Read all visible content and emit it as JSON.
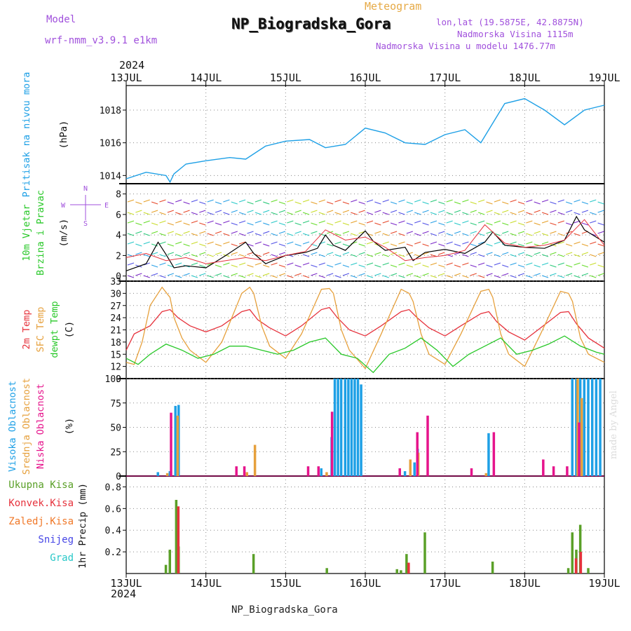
{
  "header": {
    "title": "NP_Biogradska_Gora",
    "subtitle": "Meteogram",
    "model_label": "Model",
    "model_name": "wrf-nmm_v3.9.1 e1km",
    "lonlat": "lon,lat (19.5875E, 42.8875N)",
    "elevation": "Nadmorska Visina 1115m",
    "model_elevation": "Nadmorska Visina u modelu 1476.77m",
    "year_top": "2024",
    "year_bottom": "2024",
    "footer": "NP_Biogradska_Gora",
    "credit": "made by Angel"
  },
  "colors": {
    "pressure": "#1ea0e6",
    "temp2m": "#e6323c",
    "sfc": "#e6a03c",
    "dewpt": "#28c828",
    "high_cloud": "#1ea0e6",
    "mid_cloud": "#e6a03c",
    "low_cloud": "#e6148c",
    "total_precip": "#5aa028",
    "conv_precip": "#e6323c",
    "frozen_precip": "#f07828",
    "snow": "#4646e6",
    "hail": "#28c8c8",
    "label_purple": "#a050dc",
    "label_gold": "#e6aa46"
  },
  "chart_data": [
    {
      "type": "line",
      "panel": "pressure",
      "xlabels": [
        "13JUL",
        "14JUL",
        "15JUL",
        "16JUL",
        "17JUL",
        "18JUL",
        "19JUL"
      ],
      "x_unit": "days from 13JUL 00UTC",
      "ylabel_left": "Pritisak na nivou mora",
      "ylabel_unit": "(hPa)",
      "yticks": [
        1014,
        1016,
        1018
      ],
      "ylim": [
        1013.5,
        1019.5
      ],
      "series": [
        {
          "name": "Pritisak na nivou mora",
          "color_key": "pressure",
          "x": [
            0,
            0.25,
            0.5,
            0.55,
            0.6,
            0.75,
            1,
            1.3,
            1.5,
            1.75,
            2,
            2.3,
            2.5,
            2.75,
            3,
            3.25,
            3.5,
            3.75,
            4,
            4.25,
            4.45,
            4.75,
            5,
            5.25,
            5.5,
            5.75,
            6
          ],
          "y": [
            1013.8,
            1014.2,
            1014.0,
            1013.6,
            1014.1,
            1014.7,
            1014.9,
            1015.1,
            1015.0,
            1015.8,
            1016.1,
            1016.2,
            1015.7,
            1015.9,
            1016.9,
            1016.6,
            1016.0,
            1015.9,
            1016.5,
            1016.8,
            1016.0,
            1018.4,
            1018.7,
            1018.0,
            1017.1,
            1018.0,
            1018.3
          ]
        }
      ]
    },
    {
      "type": "line",
      "panel": "wind",
      "ylabel_left1": "10m Vjetar",
      "ylabel_left2": "Brzina i Pravac",
      "ylabel_unit": "(m/s)",
      "compass": [
        "N",
        "E",
        "S",
        "W"
      ],
      "yticks": [
        0,
        2,
        4,
        6,
        8
      ],
      "ylim": [
        -0.5,
        9
      ],
      "series": [
        {
          "name": "speed",
          "color": "#000000",
          "x": [
            0,
            0.25,
            0.4,
            0.5,
            0.6,
            0.75,
            1,
            1.25,
            1.5,
            1.6,
            1.75,
            2,
            2.25,
            2.4,
            2.5,
            2.6,
            2.75,
            3,
            3.1,
            3.25,
            3.5,
            3.6,
            3.75,
            4,
            4.25,
            4.5,
            4.6,
            4.75,
            5,
            5.25,
            5.5,
            5.65,
            5.75,
            6
          ],
          "y": [
            0.5,
            1.2,
            3.3,
            2.1,
            0.8,
            1.0,
            0.8,
            2.0,
            3.3,
            2.2,
            1.2,
            2.0,
            2.3,
            2.7,
            4.0,
            3.0,
            2.5,
            4.4,
            3.4,
            2.5,
            2.8,
            1.5,
            2.3,
            2.6,
            2.2,
            3.3,
            4.3,
            3.0,
            2.8,
            2.7,
            3.5,
            5.8,
            4.5,
            3.3
          ]
        },
        {
          "name": "gust",
          "color": "#e6323c",
          "x": [
            0,
            0.25,
            0.5,
            0.75,
            1,
            1.25,
            1.5,
            1.75,
            2,
            2.25,
            2.5,
            2.75,
            3,
            3.25,
            3.5,
            3.75,
            4,
            4.25,
            4.5,
            4.75,
            5,
            5.25,
            5.5,
            5.75,
            6
          ],
          "y": [
            1.8,
            2.2,
            1.5,
            1.8,
            1.2,
            1.5,
            1.8,
            1.5,
            2.0,
            2.4,
            4.5,
            3.5,
            3.8,
            2.8,
            1.5,
            1.8,
            2.0,
            2.5,
            5.0,
            3.2,
            2.8,
            3.0,
            3.5,
            5.5,
            3.0
          ]
        }
      ]
    },
    {
      "type": "line",
      "panel": "temperature",
      "ylabel_left1": "2m Temp",
      "ylabel_left2": "SFC Temp",
      "ylabel_left3": "dewpt Temp",
      "ylabel_unit": "(C)",
      "yticks": [
        9,
        12,
        15,
        18,
        21,
        24,
        27,
        30,
        33
      ],
      "ylim": [
        9,
        33
      ],
      "series": [
        {
          "name": "2m Temp",
          "color_key": "temp2m",
          "x": [
            0,
            0.1,
            0.3,
            0.45,
            0.55,
            0.65,
            0.8,
            1,
            1.2,
            1.45,
            1.55,
            1.65,
            1.8,
            2,
            2.2,
            2.45,
            2.55,
            2.65,
            2.8,
            3,
            3.2,
            3.45,
            3.55,
            3.65,
            3.8,
            4,
            4.2,
            4.45,
            4.55,
            4.65,
            4.8,
            5,
            5.2,
            5.45,
            5.55,
            5.65,
            5.8,
            6
          ],
          "y": [
            16,
            20,
            22,
            25.5,
            26,
            24,
            22,
            20.5,
            22,
            25.5,
            26,
            23.5,
            21.5,
            19.5,
            22,
            26,
            26.5,
            24,
            21,
            19.5,
            22,
            25.5,
            26,
            24,
            21.5,
            19.5,
            22,
            25,
            25.5,
            23,
            20.5,
            18.5,
            21.5,
            25.3,
            25.5,
            22.5,
            19,
            16.5
          ]
        },
        {
          "name": "SFC Temp",
          "color_key": "sfc",
          "x": [
            0,
            0.1,
            0.2,
            0.3,
            0.45,
            0.55,
            0.6,
            0.7,
            0.8,
            1,
            1.2,
            1.45,
            1.55,
            1.6,
            1.7,
            1.8,
            2,
            2.2,
            2.45,
            2.55,
            2.6,
            2.7,
            2.8,
            3,
            3.2,
            3.45,
            3.55,
            3.6,
            3.7,
            3.8,
            4,
            4.2,
            4.45,
            4.55,
            4.6,
            4.7,
            4.8,
            5,
            5.2,
            5.45,
            5.55,
            5.6,
            5.7,
            5.8,
            6
          ],
          "y": [
            13,
            12.5,
            18,
            27,
            31.5,
            29,
            24,
            19,
            16,
            13,
            18,
            30,
            31.5,
            30,
            22,
            17,
            14,
            20,
            31,
            31.2,
            30,
            21,
            16,
            11.5,
            20,
            31,
            30,
            28,
            20,
            15,
            12.5,
            20,
            30.5,
            31,
            29,
            20,
            15,
            12,
            20,
            30.5,
            30,
            28,
            19,
            15,
            13
          ]
        },
        {
          "name": "dewpt Temp",
          "color_key": "dewpt",
          "x": [
            0,
            0.15,
            0.3,
            0.5,
            0.7,
            0.9,
            1.1,
            1.3,
            1.5,
            1.7,
            1.9,
            2.1,
            2.3,
            2.5,
            2.7,
            2.9,
            3.1,
            3.3,
            3.5,
            3.7,
            3.9,
            4.1,
            4.3,
            4.5,
            4.7,
            4.9,
            5.1,
            5.3,
            5.5,
            5.7,
            5.9,
            6
          ],
          "y": [
            14,
            12.5,
            15,
            17.5,
            16,
            14,
            15,
            17,
            17,
            16,
            15,
            16,
            18,
            19,
            15,
            14,
            10.5,
            15,
            16.5,
            19,
            16,
            12,
            15,
            17,
            19,
            15,
            16,
            17.5,
            19.5,
            17,
            15.5,
            15
          ]
        }
      ]
    },
    {
      "type": "bar",
      "panel": "cloud",
      "ylabel_left1": "Visoka Oblacnost",
      "ylabel_left2": "Srednja Oblacnost",
      "ylabel_left3": "Niska Oblacnost",
      "ylabel_unit": "(%)",
      "yticks": [
        0,
        25,
        50,
        75,
        100
      ],
      "ylim": [
        0,
        100
      ],
      "series": [
        {
          "name": "Visoka Oblacnost",
          "color_key": "high_cloud",
          "x": [
            0.4,
            0.55,
            0.62,
            0.66,
            2.45,
            2.58,
            2.62,
            2.66,
            2.7,
            2.75,
            2.79,
            2.83,
            2.87,
            2.91,
            2.95,
            3.5,
            3.62,
            3.66,
            4.55,
            5.6,
            5.65,
            5.7,
            5.75,
            5.8,
            5.85,
            5.9,
            5.95
          ],
          "y": [
            4,
            5,
            72,
            73,
            8,
            40,
            100,
            100,
            100,
            100,
            100,
            100,
            100,
            100,
            94,
            5,
            14,
            28,
            44,
            100,
            100,
            100,
            100,
            100,
            100,
            100,
            100
          ]
        },
        {
          "name": "Srednja Oblacnost",
          "color_key": "mid_cloud",
          "x": [
            0.5,
            0.63,
            1.5,
            1.6,
            2.5,
            3.55,
            3.65,
            4.5,
            5.65,
            5.7
          ],
          "y": [
            3,
            62,
            4,
            32,
            4,
            17,
            24,
            3,
            100,
            80
          ]
        },
        {
          "name": "Niska Oblacnost",
          "color_key": "low_cloud",
          "x": [
            0.53,
            1.35,
            1.45,
            2.25,
            2.38,
            2.55,
            3.4,
            3.62,
            3.75,
            4.3,
            4.58,
            5.2,
            5.33,
            5.5,
            5.65
          ],
          "y": [
            65,
            10,
            10,
            10,
            10,
            66,
            8,
            45,
            62,
            8,
            45,
            17,
            10,
            10,
            55
          ]
        }
      ]
    },
    {
      "type": "bar",
      "panel": "precip",
      "ylabel_left1": "Ukupna Kisa",
      "ylabel_left2": "Konvek.Kisa",
      "ylabel_left3": "Zaledj.Kisa",
      "ylabel_left4": "Snijeg",
      "ylabel_left5": "Grad",
      "ylabel_unit": "1hr Precip (mm)",
      "yticks": [
        0.2,
        0.4,
        0.6,
        0.8
      ],
      "ylim": [
        0,
        0.9
      ],
      "series": [
        {
          "name": "Ukupna Kisa",
          "color_key": "total_precip",
          "x": [
            0.5,
            0.55,
            0.63,
            0.66,
            1.6,
            2.52,
            3.4,
            3.45,
            3.52,
            3.75,
            4.6,
            5.55,
            5.6,
            5.65,
            5.7,
            5.8
          ],
          "y": [
            0.08,
            0.22,
            0.68,
            0.25,
            0.18,
            0.05,
            0.04,
            0.03,
            0.18,
            0.38,
            0.11,
            0.05,
            0.38,
            0.22,
            0.45,
            0.05
          ]
        },
        {
          "name": "Konvek.Kisa",
          "color_key": "conv_precip",
          "x": [
            0.63,
            3.52,
            5.62,
            5.68
          ],
          "y": [
            0.62,
            0.1,
            0.14,
            0.2
          ]
        }
      ]
    }
  ]
}
